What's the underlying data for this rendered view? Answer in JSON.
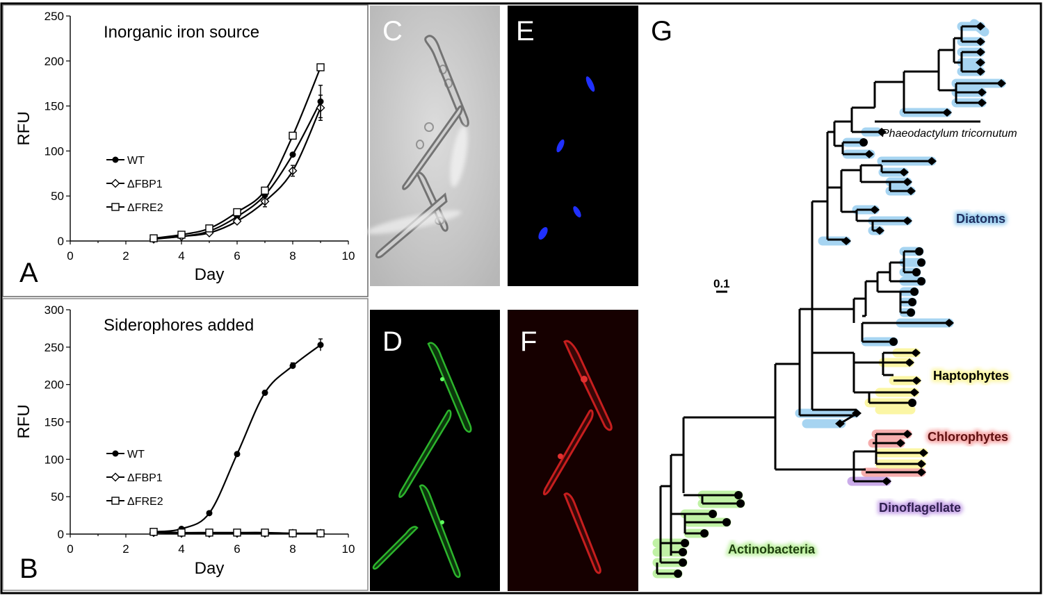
{
  "panels": {
    "a_label": "A",
    "b_label": "B",
    "c_label": "C",
    "d_label": "D",
    "e_label": "E",
    "f_label": "F",
    "g_label": "G"
  },
  "chart_data": [
    {
      "type": "line",
      "panel": "A",
      "title": "Inorganic iron source",
      "xlabel": "Day",
      "ylabel": "RFU",
      "xlim": [
        0,
        10
      ],
      "ylim": [
        0,
        250
      ],
      "xticks": [
        "0",
        "2",
        "4",
        "6",
        "8",
        "10"
      ],
      "yticks": [
        "0",
        "50",
        "100",
        "150",
        "200",
        "250"
      ],
      "x": [
        3,
        4,
        5,
        6,
        7,
        8,
        9
      ],
      "legend_position": "left",
      "series": [
        {
          "name": "WT",
          "marker": "circle",
          "values": [
            3,
            5,
            11,
            27,
            51,
            96,
            155
          ]
        },
        {
          "name": "ΔFBP1",
          "marker": "diamond",
          "values": [
            2,
            5,
            9,
            22,
            44,
            78,
            148
          ]
        },
        {
          "name": "ΔFRE2",
          "marker": "square",
          "values": [
            3,
            7,
            14,
            32,
            56,
            117,
            193
          ]
        }
      ]
    },
    {
      "type": "line",
      "panel": "B",
      "title": "Siderophores added",
      "xlabel": "Day",
      "ylabel": "RFU",
      "xlim": [
        0,
        10
      ],
      "ylim": [
        0,
        300
      ],
      "xticks": [
        "0",
        "2",
        "4",
        "6",
        "8",
        "10"
      ],
      "yticks": [
        "0",
        "50",
        "100",
        "150",
        "200",
        "250",
        "300"
      ],
      "x": [
        3,
        4,
        5,
        6,
        7,
        8,
        9
      ],
      "legend_position": "left",
      "series": [
        {
          "name": "WT",
          "marker": "circle",
          "values": [
            3,
            7,
            28,
            107,
            189,
            225,
            253
          ]
        },
        {
          "name": "ΔFBP1",
          "marker": "diamond",
          "values": [
            2,
            1,
            1,
            1,
            1,
            1,
            1
          ]
        },
        {
          "name": "ΔFRE2",
          "marker": "square",
          "values": [
            3,
            2,
            2,
            2,
            2,
            1,
            1
          ]
        }
      ]
    }
  ],
  "tree": {
    "scale_label": "0.1",
    "species_label": "Phaeodactylum tricornutum",
    "clades": [
      {
        "name": "Diatoms",
        "color": "#3f7fbf",
        "glow": "#9ccff0"
      },
      {
        "name": "Haptophytes",
        "color": "#000000",
        "glow": "#fbf5a0"
      },
      {
        "name": "Chlorophytes",
        "color": "#d03030",
        "glow": "#f6a9a9"
      },
      {
        "name": "Dinoflagellate",
        "color": "#6a3f9f",
        "glow": "#c7a6e8"
      },
      {
        "name": "Actinobacteria",
        "color": "#2f7f1f",
        "glow": "#bdf0a0"
      }
    ]
  },
  "colors": {
    "microscopy_green": "#2fbf2f",
    "microscopy_red": "#d02020",
    "microscopy_blue": "#2030ff"
  }
}
